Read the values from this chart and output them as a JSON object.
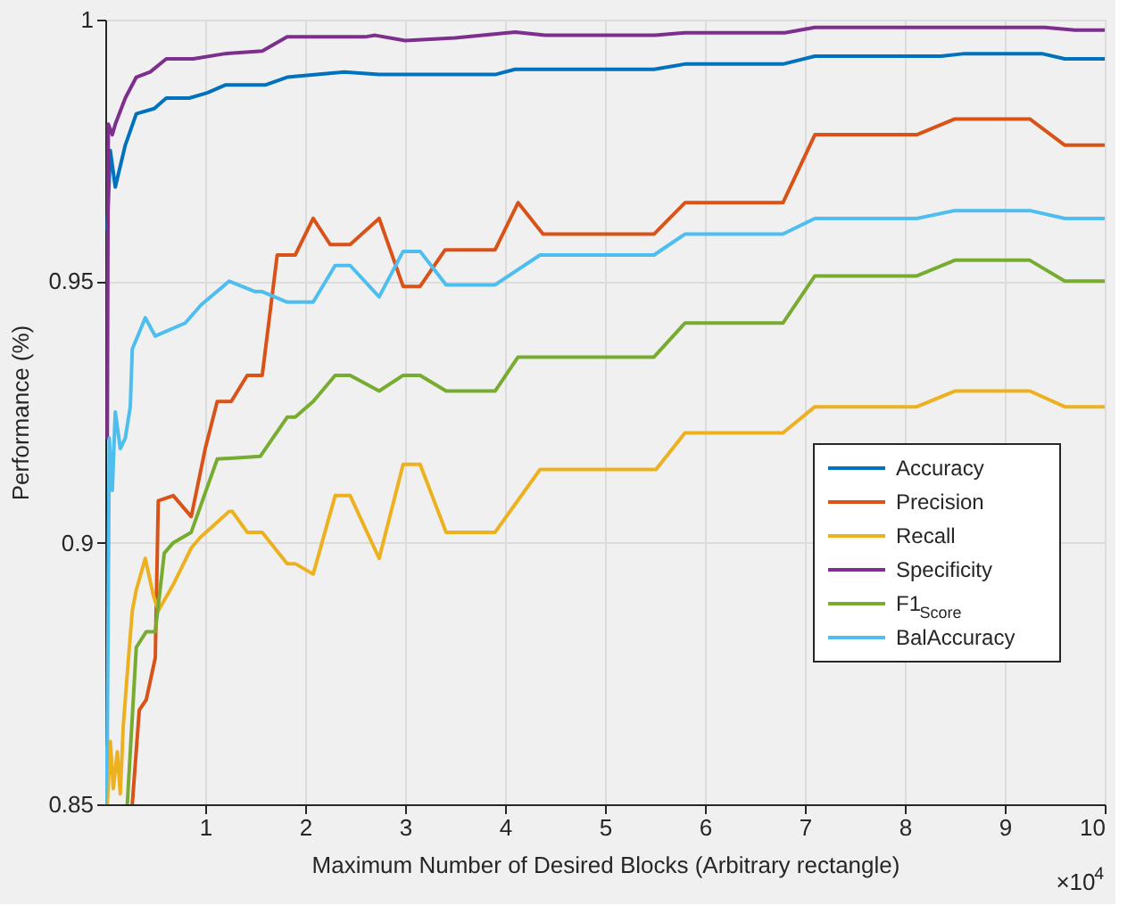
{
  "chart_data": {
    "type": "line",
    "xlabel": "Maximum Number of Desired Blocks (Arbitrary rectangle)",
    "ylabel": "Performance (%)",
    "xlim": [
      0,
      10
    ],
    "xticks": [
      1,
      2,
      3,
      4,
      5,
      6,
      7,
      8,
      9,
      10
    ],
    "ylim": [
      0.85,
      1
    ],
    "yticks": [
      0.85,
      0.9,
      0.95,
      1
    ],
    "grid": true,
    "legend": "bottom right",
    "line_style": "solid",
    "marker": "none",
    "annotations": [
      "×10$^{4}$"
    ],
    "series": [
      {
        "name": "Accuracy",
        "color": "#0072bd",
        "x": [
          0.02,
          0.05,
          0.1,
          0.2,
          0.31,
          0.49,
          0.61,
          0.84,
          1.02,
          1.2,
          1.6,
          1.82,
          2.39,
          2.74,
          3.33,
          3.9,
          4.1,
          5.49,
          5.8,
          6.78,
          7.1,
          8.36,
          8.6,
          9.37,
          9.6,
          10
        ],
        "values": [
          0.96,
          0.975,
          0.968,
          0.976,
          0.982,
          0.983,
          0.985,
          0.985,
          0.986,
          0.9875,
          0.9875,
          0.989,
          0.99,
          0.9895,
          0.9895,
          0.9895,
          0.9905,
          0.9905,
          0.9915,
          0.9915,
          0.993,
          0.993,
          0.9935,
          0.9935,
          0.9925,
          0.9925
        ]
      },
      {
        "name": "Precision",
        "color": "#d95319",
        "x": [
          0.27,
          0.34,
          0.41,
          0.5,
          0.53,
          0.68,
          0.86,
          1.0,
          1.12,
          1.26,
          1.42,
          1.57,
          1.72,
          1.9,
          2.08,
          2.25,
          2.45,
          2.74,
          2.98,
          3.15,
          3.4,
          3.9,
          4.13,
          4.38,
          5.49,
          5.8,
          6.78,
          7.1,
          8.12,
          8.5,
          9.25,
          9.6,
          10
        ],
        "values": [
          0.85,
          0.868,
          0.87,
          0.878,
          0.908,
          0.909,
          0.905,
          0.918,
          0.927,
          0.927,
          0.932,
          0.932,
          0.955,
          0.955,
          0.962,
          0.957,
          0.957,
          0.962,
          0.949,
          0.949,
          0.956,
          0.956,
          0.965,
          0.959,
          0.959,
          0.965,
          0.965,
          0.978,
          0.978,
          0.981,
          0.981,
          0.976,
          0.976
        ]
      },
      {
        "name": "Recall",
        "color": "#edb120",
        "x": [
          0.02,
          0.05,
          0.08,
          0.12,
          0.15,
          0.18,
          0.22,
          0.27,
          0.31,
          0.4,
          0.48,
          0.53,
          0.68,
          0.86,
          0.95,
          1.24,
          1.27,
          1.42,
          1.57,
          1.82,
          1.9,
          2.08,
          2.3,
          2.45,
          2.74,
          2.98,
          3.15,
          3.41,
          3.9,
          4.35,
          5.51,
          5.8,
          6.78,
          7.1,
          8.12,
          8.5,
          9.25,
          9.6,
          10
        ],
        "values": [
          0.85,
          0.862,
          0.853,
          0.86,
          0.852,
          0.865,
          0.875,
          0.887,
          0.891,
          0.897,
          0.89,
          0.887,
          0.892,
          0.899,
          0.901,
          0.906,
          0.906,
          0.902,
          0.902,
          0.896,
          0.896,
          0.894,
          0.909,
          0.909,
          0.897,
          0.915,
          0.915,
          0.902,
          0.902,
          0.914,
          0.914,
          0.921,
          0.921,
          0.926,
          0.926,
          0.929,
          0.929,
          0.926,
          0.926
        ]
      },
      {
        "name": "Specificity",
        "color": "#7e2f8e",
        "x": [
          0.02,
          0.03,
          0.07,
          0.1,
          0.2,
          0.31,
          0.45,
          0.61,
          0.88,
          1.2,
          1.57,
          1.82,
          2.6,
          2.7,
          3.0,
          3.5,
          4.1,
          4.4,
          5.5,
          5.8,
          6.8,
          7.1,
          9.4,
          9.7,
          10
        ],
        "values": [
          0.92,
          0.98,
          0.978,
          0.98,
          0.985,
          0.989,
          0.99,
          0.9925,
          0.9925,
          0.9935,
          0.994,
          0.9967,
          0.9967,
          0.997,
          0.996,
          0.9965,
          0.9976,
          0.997,
          0.997,
          0.9975,
          0.9975,
          0.9985,
          0.9985,
          0.998,
          0.998
        ]
      },
      {
        "name": "F1$_{Score}$",
        "color": "#77ac30",
        "x": [
          0.22,
          0.31,
          0.41,
          0.5,
          0.59,
          0.68,
          0.86,
          1.12,
          1.55,
          1.82,
          1.9,
          2.08,
          2.3,
          2.45,
          2.74,
          2.98,
          3.15,
          3.41,
          3.9,
          4.13,
          5.49,
          5.8,
          6.78,
          7.1,
          8.12,
          8.5,
          9.25,
          9.6,
          10
        ],
        "values": [
          0.85,
          0.88,
          0.883,
          0.883,
          0.898,
          0.9,
          0.902,
          0.916,
          0.9165,
          0.924,
          0.924,
          0.927,
          0.932,
          0.932,
          0.929,
          0.932,
          0.932,
          0.929,
          0.929,
          0.9355,
          0.9355,
          0.942,
          0.942,
          0.951,
          0.951,
          0.954,
          0.954,
          0.95,
          0.95
        ]
      },
      {
        "name": "BalAccuracy",
        "color": "#4dbeee",
        "x": [
          0.0,
          0.02,
          0.04,
          0.07,
          0.1,
          0.15,
          0.2,
          0.25,
          0.27,
          0.4,
          0.5,
          0.8,
          0.96,
          1.24,
          1.5,
          1.57,
          1.82,
          2.08,
          2.3,
          2.45,
          2.74,
          2.98,
          3.15,
          3.41,
          3.9,
          4.35,
          5.49,
          5.8,
          6.78,
          7.1,
          8.12,
          8.5,
          9.25,
          9.6,
          10
        ],
        "values": [
          0.85,
          0.862,
          0.92,
          0.91,
          0.925,
          0.918,
          0.92,
          0.926,
          0.937,
          0.943,
          0.9395,
          0.942,
          0.9455,
          0.95,
          0.948,
          0.948,
          0.946,
          0.946,
          0.953,
          0.953,
          0.947,
          0.9557,
          0.9557,
          0.9493,
          0.9493,
          0.955,
          0.955,
          0.959,
          0.959,
          0.962,
          0.962,
          0.9635,
          0.9635,
          0.962,
          0.962
        ]
      }
    ]
  }
}
